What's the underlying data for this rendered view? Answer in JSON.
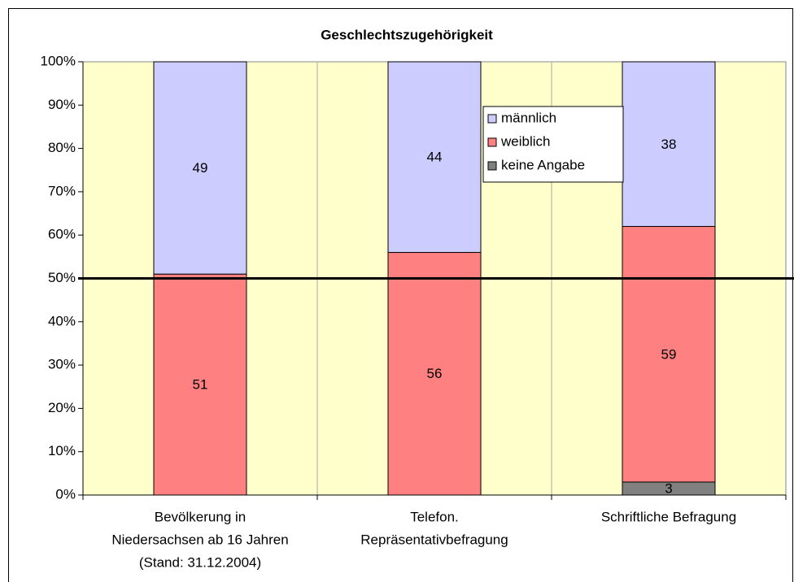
{
  "chart_data": {
    "type": "stacked_bar",
    "title": "Geschlechtszugehörigkeit",
    "categories": [
      [
        "Bevölkerung in",
        "Niedersachsen ab 16 Jahren",
        "(Stand: 31.12.2004)"
      ],
      [
        "Telefon.",
        "Repräsentativbefragung"
      ],
      [
        "Schriftliche Befragung"
      ]
    ],
    "series": [
      {
        "name": "männlich",
        "color": "#ccccff",
        "values": [
          49,
          44,
          38
        ]
      },
      {
        "name": "weiblich",
        "color": "#ff8080",
        "values": [
          51,
          56,
          59
        ]
      },
      {
        "name": "keine Angabe",
        "color": "#808080",
        "values": [
          null,
          null,
          3
        ]
      }
    ],
    "ylim": [
      0,
      100
    ],
    "yticks": [
      {
        "value": 0,
        "label": "0%"
      },
      {
        "value": 10,
        "label": "10%"
      },
      {
        "value": 20,
        "label": "20%"
      },
      {
        "value": 30,
        "label": "30%"
      },
      {
        "value": 40,
        "label": "40%"
      },
      {
        "value": 50,
        "label": "50%"
      },
      {
        "value": 60,
        "label": "60%"
      },
      {
        "value": 70,
        "label": "70%"
      },
      {
        "value": 80,
        "label": "80%"
      },
      {
        "value": 90,
        "label": "90%"
      },
      {
        "value": 100,
        "label": "100%"
      }
    ],
    "reference_line": 50,
    "background": "#ffffcc"
  }
}
